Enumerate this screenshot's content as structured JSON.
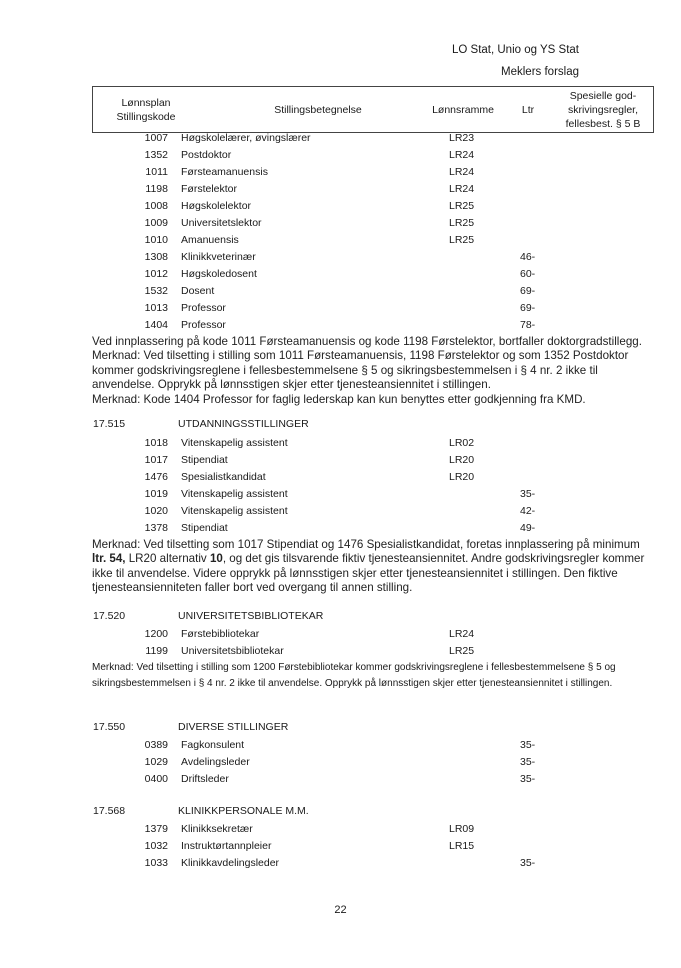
{
  "header": {
    "parties": "LO Stat, Unio og YS Stat",
    "subtitle": "Meklers forslag"
  },
  "table_header": {
    "code": [
      "Lønnsplan",
      "Stillingskode"
    ],
    "title": "Stillingsbetegnelse",
    "frame": "Lønnsramme",
    "ltr": "Ltr",
    "special": [
      "Spesielle god-",
      "skrivingsregler,",
      "fellesbest. § 5 B"
    ]
  },
  "section0": {
    "rows": [
      {
        "code": "1007",
        "name": "Høgskolelærer, øvingslærer",
        "lr": "LR23",
        "ltr": ""
      },
      {
        "code": "1352",
        "name": "Postdoktor",
        "lr": "LR24",
        "ltr": ""
      },
      {
        "code": "1011",
        "name": "Førsteamanuensis",
        "lr": "LR24",
        "ltr": ""
      },
      {
        "code": "1198",
        "name": "Førstelektor",
        "lr": "LR24",
        "ltr": ""
      },
      {
        "code": "1008",
        "name": "Høgskolelektor",
        "lr": "LR25",
        "ltr": ""
      },
      {
        "code": "1009",
        "name": "Universitetslektor",
        "lr": "LR25",
        "ltr": ""
      },
      {
        "code": "1010",
        "name": "Amanuensis",
        "lr": "LR25",
        "ltr": ""
      },
      {
        "code": "1308",
        "name": "Klinikkveterinær",
        "lr": "",
        "ltr": "46-"
      },
      {
        "code": "1012",
        "name": "Høgskoledosent",
        "lr": "",
        "ltr": "60-"
      },
      {
        "code": "1532",
        "name": "Dosent",
        "lr": "",
        "ltr": "69-"
      },
      {
        "code": "1013",
        "name": "Professor",
        "lr": "",
        "ltr": "69-"
      },
      {
        "code": "1404",
        "name": "Professor",
        "lr": "",
        "ltr": "78-"
      }
    ],
    "notes": [
      "Ved innplassering på kode 1011 Førsteamanuensis og kode 1198 Førstelektor, bortfaller doktorgradstillegg.",
      "Merknad: Ved tilsetting i stilling som 1011 Førsteamanuensis, 1198 Førstelektor og som 1352 Postdoktor kommer godskrivingsreglene i fellesbestemmelsene § 5 og sikringsbestemmelsen i § 4 nr. 2 ikke til anvendelse. Opprykk på lønnsstigen skjer etter tjenesteansiennitet i stillingen.",
      "Merknad: Kode 1404 Professor for faglig lederskap kan kun benyttes etter godkjenning fra KMD."
    ]
  },
  "section1": {
    "number": "17.515",
    "title": "UTDANNINGSSTILLINGER",
    "rows": [
      {
        "code": "1018",
        "name": "Vitenskapelig assistent",
        "lr": "LR02",
        "ltr": ""
      },
      {
        "code": "1017",
        "name": "Stipendiat",
        "lr": "LR20",
        "ltr": ""
      },
      {
        "code": "1476",
        "name": "Spesialistkandidat",
        "lr": "LR20",
        "ltr": ""
      },
      {
        "code": "1019",
        "name": "Vitenskapelig assistent",
        "lr": "",
        "ltr": "35-"
      },
      {
        "code": "1020",
        "name": "Vitenskapelig assistent",
        "lr": "",
        "ltr": "42-"
      },
      {
        "code": "1378",
        "name": "Stipendiat",
        "lr": "",
        "ltr": "49-"
      }
    ],
    "note_a": "Merknad: Ved tilsetting som 1017 Stipendiat og 1476 Spesialistkandidat, foretas innplassering på minimum ",
    "note_b": "ltr. 54,",
    "note_c": " LR20 alternativ ",
    "note_d": "10",
    "note_e": ", og det gis tilsvarende fiktiv tjenesteansiennitet.  Andre godskrivingsregler kommer ikke til anvendelse. Videre opprykk på lønnsstigen skjer etter tjenesteansiennitet i stillingen. Den fiktive tjenesteansienniteten faller bort ved overgang til annen stilling."
  },
  "section2": {
    "number": "17.520",
    "title": "UNIVERSITETSBIBLIOTEKAR",
    "rows": [
      {
        "code": "1200",
        "name": "Førstebibliotekar",
        "lr": "LR24",
        "ltr": ""
      },
      {
        "code": "1199",
        "name": "Universitetsbibliotekar",
        "lr": "LR25",
        "ltr": ""
      }
    ],
    "note": "Merknad: Ved tilsetting i stilling som 1200 Førstebibliotekar kommer godskrivingsreglene i fellesbestemmelsene § 5 og sikringsbestemmelsen i § 4 nr. 2 ikke til anvendelse. Opprykk på lønnsstigen skjer etter tjenesteansiennitet i stillingen."
  },
  "section3": {
    "number": "17.550",
    "title": "DIVERSE STILLINGER",
    "rows": [
      {
        "code": "0389",
        "name": "Fagkonsulent",
        "lr": "",
        "ltr": "35-"
      },
      {
        "code": "1029",
        "name": "Avdelingsleder",
        "lr": "",
        "ltr": "35-"
      },
      {
        "code": "0400",
        "name": "Driftsleder",
        "lr": "",
        "ltr": "35-"
      }
    ]
  },
  "section4": {
    "number": "17.568",
    "title": "KLINIKKPERSONALE M.M.",
    "rows": [
      {
        "code": "1379",
        "name": "Klinikksekretær",
        "lr": "LR09",
        "ltr": ""
      },
      {
        "code": "1032",
        "name": "Instruktørtannpleier",
        "lr": "LR15",
        "ltr": ""
      },
      {
        "code": "1033",
        "name": "Klinikkavdelingsleder",
        "lr": "",
        "ltr": "35-"
      }
    ]
  },
  "footer": {
    "page_number": "22"
  }
}
